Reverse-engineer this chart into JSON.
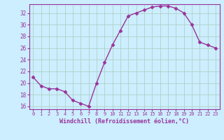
{
  "x": [
    0,
    1,
    2,
    3,
    4,
    5,
    6,
    7,
    8,
    9,
    10,
    11,
    12,
    13,
    14,
    15,
    16,
    17,
    18,
    19,
    20,
    21,
    22,
    23
  ],
  "y": [
    21.0,
    19.5,
    19.0,
    19.0,
    18.5,
    17.0,
    16.5,
    16.0,
    20.0,
    23.5,
    26.5,
    29.0,
    31.5,
    32.0,
    32.5,
    33.0,
    33.2,
    33.2,
    32.8,
    32.0,
    30.0,
    27.0,
    26.5,
    26.0
  ],
  "ylim": [
    15.5,
    33.5
  ],
  "xlim": [
    -0.5,
    23.5
  ],
  "yticks": [
    16,
    18,
    20,
    22,
    24,
    26,
    28,
    30,
    32
  ],
  "xticks": [
    0,
    1,
    2,
    3,
    4,
    5,
    6,
    7,
    8,
    9,
    10,
    11,
    12,
    13,
    14,
    15,
    16,
    17,
    18,
    19,
    20,
    21,
    22,
    23
  ],
  "xlabel": "Windchill (Refroidissement éolien,°C)",
  "line_color": "#993399",
  "marker": "D",
  "bg_color": "#cceeff",
  "grid_color": "#aaccbb",
  "axis_color": "#993399",
  "label_color": "#993399",
  "marker_size": 2.5,
  "line_width": 1.0
}
